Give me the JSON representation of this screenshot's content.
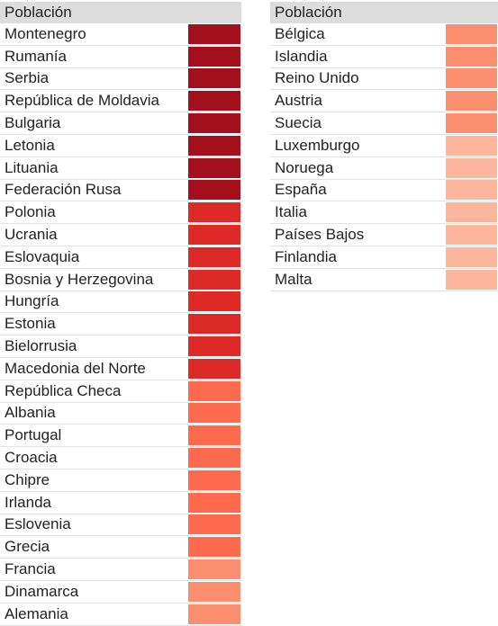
{
  "header_label": "Población",
  "colors": {
    "level1": "#a30f1a",
    "level2": "#dd2a26",
    "level3": "#fd6a4d",
    "level4": "#fc8e70",
    "level5": "#fdb59c"
  },
  "left_table": {
    "header": "Población",
    "rows": [
      {
        "country": "Montenegro",
        "level": 1
      },
      {
        "country": "Rumanía",
        "level": 1
      },
      {
        "country": "Serbia",
        "level": 1
      },
      {
        "country": "República de Moldavia",
        "level": 1
      },
      {
        "country": "Bulgaria",
        "level": 1
      },
      {
        "country": "Letonia",
        "level": 1
      },
      {
        "country": "Lituania",
        "level": 1
      },
      {
        "country": "Federación Rusa",
        "level": 1
      },
      {
        "country": "Polonia",
        "level": 2
      },
      {
        "country": "Ucrania",
        "level": 2
      },
      {
        "country": "Eslovaquia",
        "level": 2
      },
      {
        "country": "Bosnia y Herzegovina",
        "level": 2
      },
      {
        "country": "Hungría",
        "level": 2
      },
      {
        "country": "Estonia",
        "level": 2
      },
      {
        "country": "Bielorrusia",
        "level": 2
      },
      {
        "country": "Macedonia del Norte",
        "level": 2
      },
      {
        "country": "República Checa",
        "level": 3
      },
      {
        "country": "Albania",
        "level": 3
      },
      {
        "country": "Portugal",
        "level": 3
      },
      {
        "country": "Croacia",
        "level": 3
      },
      {
        "country": "Chipre",
        "level": 3
      },
      {
        "country": "Irlanda",
        "level": 3
      },
      {
        "country": "Eslovenia",
        "level": 3
      },
      {
        "country": "Grecia",
        "level": 3
      },
      {
        "country": "Francia",
        "level": 4
      },
      {
        "country": "Dinamarca",
        "level": 4
      },
      {
        "country": "Alemania",
        "level": 4
      }
    ]
  },
  "right_table": {
    "header": "Población",
    "rows": [
      {
        "country": "Bélgica",
        "level": 4
      },
      {
        "country": "Islandia",
        "level": 4
      },
      {
        "country": "Reino Unido",
        "level": 4
      },
      {
        "country": "Austria",
        "level": 4
      },
      {
        "country": "Suecia",
        "level": 4
      },
      {
        "country": "Luxemburgo",
        "level": 5
      },
      {
        "country": "Noruega",
        "level": 5
      },
      {
        "country": "España",
        "level": 5
      },
      {
        "country": "Italia",
        "level": 5
      },
      {
        "country": "Países Bajos",
        "level": 5
      },
      {
        "country": "Finlandia",
        "level": 5
      },
      {
        "country": "Malta",
        "level": 5
      }
    ]
  }
}
